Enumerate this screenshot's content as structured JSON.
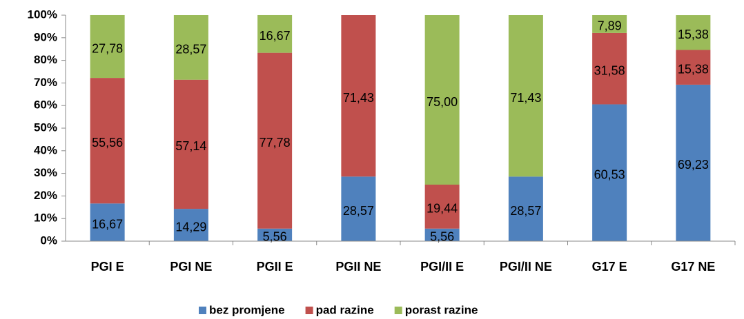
{
  "chart_data": {
    "type": "stacked_bar",
    "categories": [
      "PGI E",
      "PGI NE",
      "PGII E",
      "PGII NE",
      "PGI/II E",
      "PGI/II NE",
      "G17 E",
      "G17 NE"
    ],
    "series": [
      {
        "name": "bez promjene",
        "color": "#4f81bd",
        "values": [
          16.67,
          14.29,
          5.56,
          28.57,
          5.56,
          28.57,
          60.53,
          69.23
        ],
        "value_labels": [
          "16,67",
          "14,29",
          "5,56",
          "28,57",
          "5,56",
          "28,57",
          "60,53",
          "69,23"
        ]
      },
      {
        "name": "pad razine",
        "color": "#c0504d",
        "values": [
          55.56,
          57.14,
          77.78,
          71.43,
          19.44,
          0,
          31.58,
          15.38
        ],
        "value_labels": [
          "55,56",
          "57,14",
          "77,78",
          "71,43",
          "19,44",
          null,
          "31,58",
          "15,38"
        ]
      },
      {
        "name": "porast razine",
        "color": "#9bbb59",
        "values": [
          27.78,
          28.57,
          16.67,
          0,
          75.0,
          71.43,
          7.89,
          15.38
        ],
        "value_labels": [
          "27,78",
          "28,57",
          "16,67",
          null,
          "75,00",
          "71,43",
          "7,89",
          "15,38"
        ]
      }
    ],
    "ylim": [
      0,
      100
    ],
    "yticks": [
      {
        "value": 0,
        "label": "0%"
      },
      {
        "value": 10,
        "label": "10%"
      },
      {
        "value": 20,
        "label": "20%"
      },
      {
        "value": 30,
        "label": "30%"
      },
      {
        "value": 40,
        "label": "40%"
      },
      {
        "value": 50,
        "label": "50%"
      },
      {
        "value": 60,
        "label": "60%"
      },
      {
        "value": 70,
        "label": "70%"
      },
      {
        "value": 80,
        "label": "80%"
      },
      {
        "value": 90,
        "label": "90%"
      },
      {
        "value": 100,
        "label": "100%"
      }
    ],
    "grid": false,
    "legend": "bottom"
  }
}
